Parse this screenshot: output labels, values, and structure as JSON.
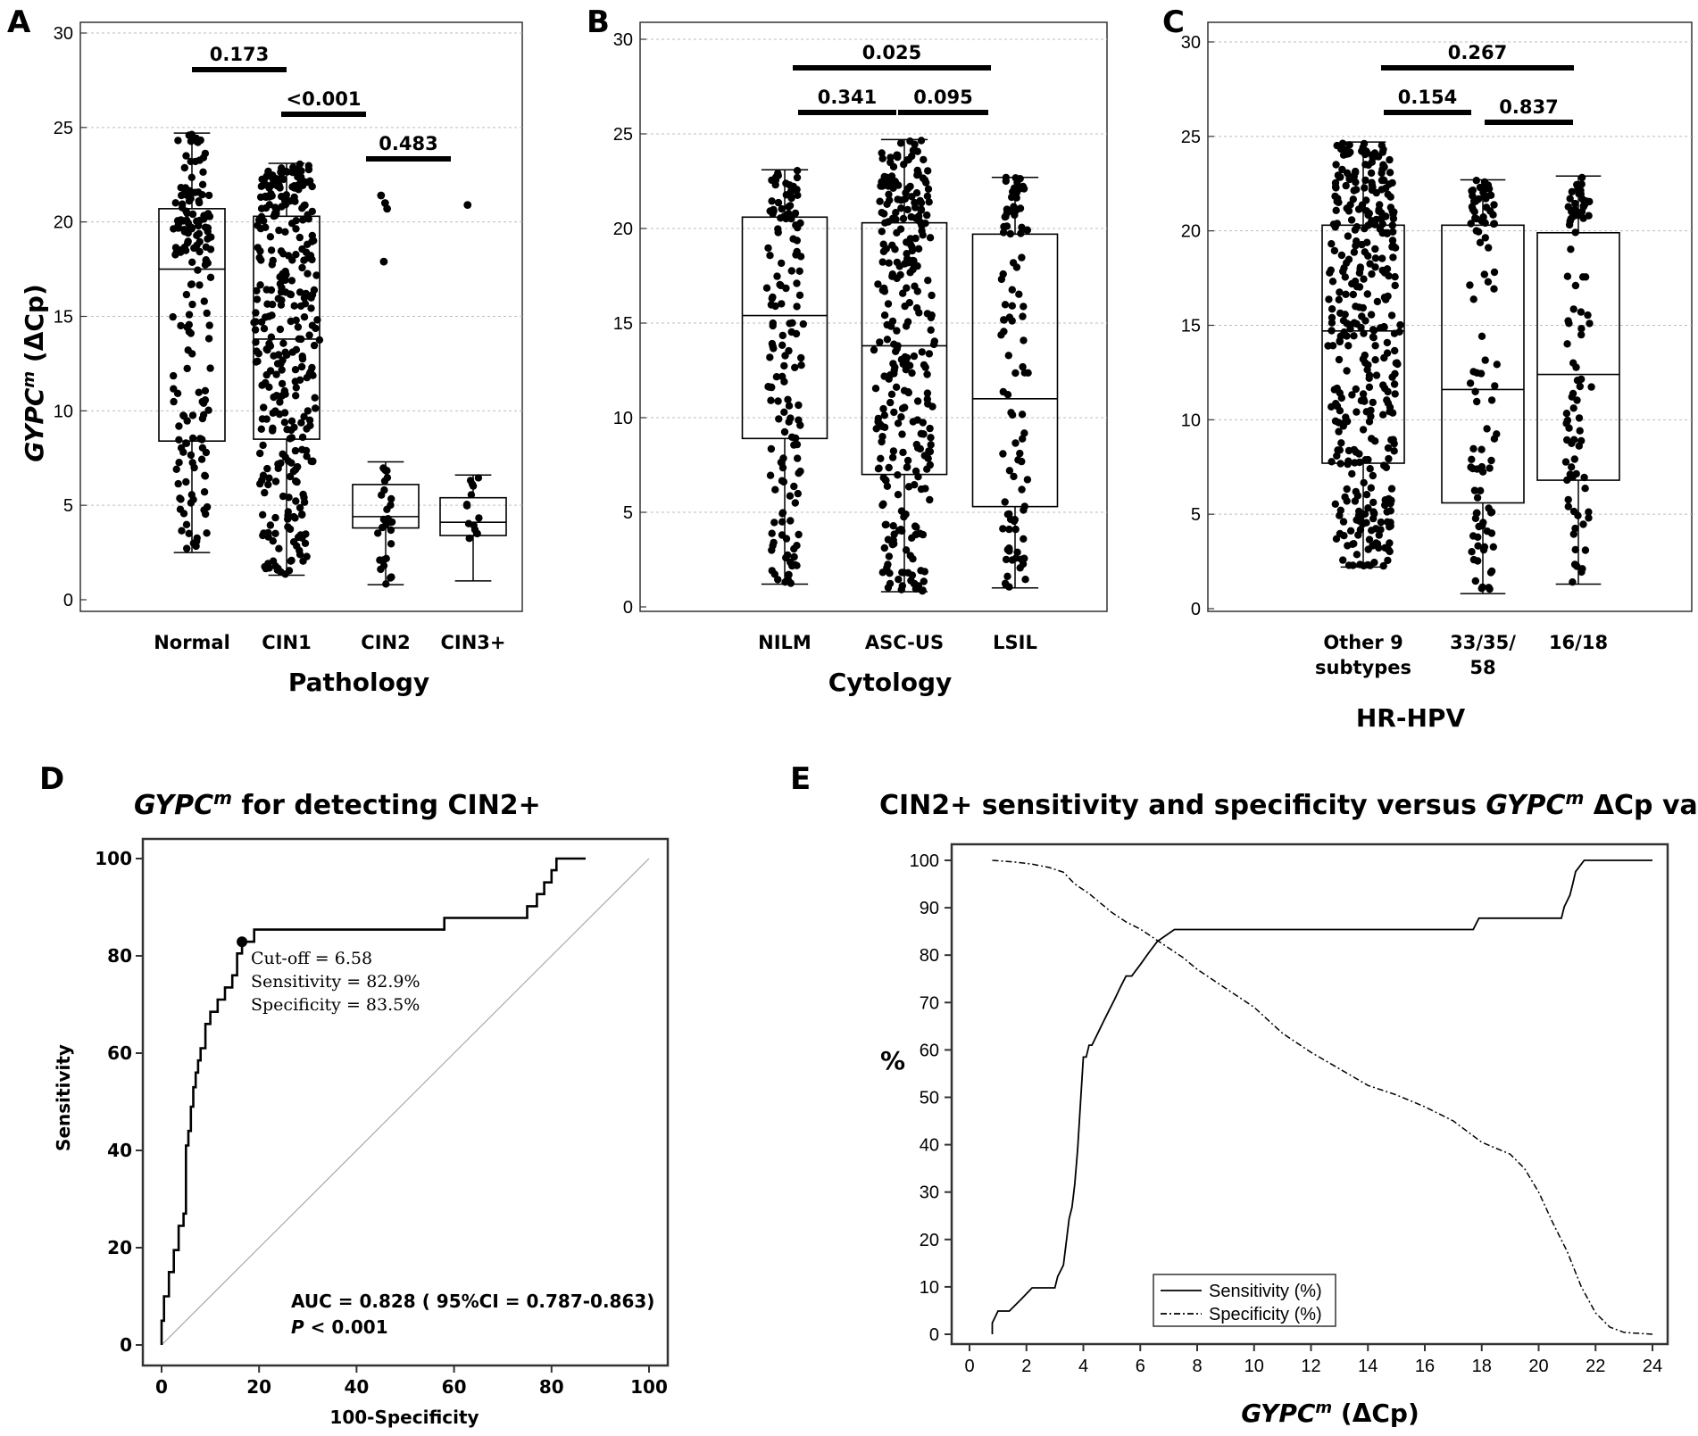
{
  "chart_data": [
    {
      "panel": "A",
      "type": "box-swarm",
      "ylabel_gene": "GYPC",
      "ylabel_sup": "m",
      "ylabel_rest": " (ΔCp)",
      "xlabel": "Pathology",
      "ylim": [
        0,
        30
      ],
      "yticks": [
        0,
        5,
        10,
        15,
        20,
        25,
        30
      ],
      "grid": true,
      "categories": [
        "Normal",
        "CIN1",
        "CIN2",
        "CIN3+"
      ],
      "boxes": [
        {
          "name": "Normal",
          "min": 2.5,
          "q1": 8.4,
          "median": 17.5,
          "q3": 20.7,
          "max": 24.7,
          "n": 170
        },
        {
          "name": "CIN1",
          "min": 1.3,
          "q1": 8.5,
          "median": 13.8,
          "q3": 20.3,
          "max": 23.1,
          "n": 330
        },
        {
          "name": "CIN2",
          "min": 0.8,
          "q1": 3.8,
          "median": 4.4,
          "q3": 6.1,
          "max": 7.3,
          "n": 28,
          "outliers": [
            17.9,
            20.7,
            21.0,
            21.4
          ]
        },
        {
          "name": "CIN3+",
          "min": 1.0,
          "q1": 3.4,
          "median": 4.1,
          "q3": 5.4,
          "max": 6.6,
          "n": 14,
          "outliers": [
            20.9
          ]
        }
      ],
      "comparisons": [
        {
          "groups": [
            "Normal",
            "CIN1"
          ],
          "p": "0.173"
        },
        {
          "groups": [
            "CIN1",
            "CIN2"
          ],
          "p": "<0.001"
        },
        {
          "groups": [
            "CIN2",
            "CIN3+"
          ],
          "p": "0.483"
        }
      ]
    },
    {
      "panel": "B",
      "type": "box-swarm",
      "xlabel": "Cytology",
      "ylim": [
        0,
        30
      ],
      "yticks": [
        0,
        5,
        10,
        15,
        20,
        25,
        30
      ],
      "grid": true,
      "categories": [
        "NILM",
        "ASC-US",
        "LSIL"
      ],
      "boxes": [
        {
          "name": "NILM",
          "min": 1.2,
          "q1": 8.9,
          "median": 15.4,
          "q3": 20.6,
          "max": 23.1,
          "n": 150
        },
        {
          "name": "ASC-US",
          "min": 0.8,
          "q1": 7.0,
          "median": 13.8,
          "q3": 20.3,
          "max": 24.7,
          "n": 300
        },
        {
          "name": "LSIL",
          "min": 1.0,
          "q1": 5.3,
          "median": 11.0,
          "q3": 19.7,
          "max": 22.7,
          "n": 100
        }
      ],
      "comparisons": [
        {
          "groups": [
            "NILM",
            "LSIL"
          ],
          "p": "0.025"
        },
        {
          "groups": [
            "NILM",
            "ASC-US"
          ],
          "p": "0.341"
        },
        {
          "groups": [
            "ASC-US",
            "LSIL"
          ],
          "p": "0.095"
        }
      ]
    },
    {
      "panel": "C",
      "type": "box-swarm",
      "xlabel": "HR-HPV",
      "ylim": [
        0,
        30
      ],
      "yticks": [
        0,
        5,
        10,
        15,
        20,
        25,
        30
      ],
      "grid": true,
      "categories": [
        [
          "Other 9",
          "subtypes"
        ],
        [
          "33/35/",
          "58"
        ],
        [
          "16/18"
        ]
      ],
      "boxes": [
        {
          "name": "Other 9 subtypes",
          "min": 2.2,
          "q1": 7.7,
          "median": 14.7,
          "q3": 20.3,
          "max": 24.7,
          "n": 380
        },
        {
          "name": "33/35/58",
          "min": 0.8,
          "q1": 5.6,
          "median": 11.6,
          "q3": 20.3,
          "max": 22.7,
          "n": 100
        },
        {
          "name": "16/18",
          "min": 1.3,
          "q1": 6.8,
          "median": 12.4,
          "q3": 19.9,
          "max": 22.9,
          "n": 90
        }
      ],
      "comparisons": [
        {
          "groups": [
            "Other 9 subtypes",
            "16/18"
          ],
          "p": "0.267"
        },
        {
          "groups": [
            "Other 9 subtypes",
            "33/35/58"
          ],
          "p": "0.154"
        },
        {
          "groups": [
            "33/35/58",
            "16/18"
          ],
          "p": "0.837"
        }
      ]
    },
    {
      "panel": "D",
      "type": "line",
      "title_gene": "GYPC",
      "title_sup": "m",
      "title_rest": " for detecting CIN2+",
      "xlabel": "100-Specificity",
      "ylabel": "Sensitivity",
      "xlim": [
        0,
        100
      ],
      "ylim": [
        0,
        100
      ],
      "xticks": [
        0,
        20,
        40,
        60,
        80,
        100
      ],
      "yticks": [
        0,
        20,
        40,
        60,
        80,
        100
      ],
      "roc_x": [
        0,
        0,
        0.5,
        0.5,
        1.5,
        1.5,
        2.5,
        2.5,
        3.5,
        3.5,
        4.5,
        4.5,
        5,
        5,
        5.5,
        5.5,
        6,
        6,
        6.5,
        6.5,
        7,
        7,
        7.5,
        7.5,
        8,
        8,
        9,
        9,
        10,
        10,
        11.5,
        11.5,
        13,
        13,
        14.5,
        14.5,
        15.5,
        15.5,
        16.5,
        16.5,
        19,
        19,
        58,
        58,
        75,
        75,
        77,
        77,
        78.5,
        78.5,
        80,
        80,
        81,
        81,
        87,
        87,
        100
      ],
      "roc_y": [
        0,
        5,
        5,
        10,
        10,
        15,
        15,
        19.5,
        19.5,
        24.5,
        24.5,
        27,
        27,
        41,
        41,
        44,
        44,
        49,
        49,
        53,
        53,
        56,
        56,
        58.5,
        58.5,
        61,
        61,
        66,
        66,
        68.5,
        68.5,
        71,
        71,
        73.5,
        73.5,
        76,
        76,
        80.5,
        80.5,
        82.9,
        82.9,
        85.4,
        85.4,
        87.8,
        87.8,
        90.2,
        90.2,
        92.7,
        92.7,
        95.1,
        95.1,
        97.6,
        97.6,
        100,
        100
      ],
      "diagonal": [
        [
          0,
          0
        ],
        [
          100,
          100
        ]
      ],
      "cutoff_point": {
        "x": 16.5,
        "y": 82.9
      },
      "annotations": [
        "Cut-off = 6.58",
        "Sensitivity = 82.9%",
        "Specificity = 83.5%"
      ],
      "auc_text": "AUC = 0.828 ( 95%CI = 0.787-0.863)",
      "p_label": "P",
      "p_text": " < 0.001"
    },
    {
      "panel": "E",
      "type": "line",
      "title_pre": "CIN2+ sensitivity and specificity versus ",
      "title_gene": "GYPC",
      "title_sup": "m",
      "title_rest": " ΔCp values",
      "ylabel": "%",
      "xlabel_gene": "GYPC",
      "xlabel_sup": "m",
      "xlabel_rest": " (ΔCp)",
      "xlim": [
        0,
        24
      ],
      "ylim": [
        0,
        100
      ],
      "xticks": [
        0,
        2,
        4,
        6,
        8,
        10,
        12,
        14,
        16,
        18,
        20,
        22,
        24
      ],
      "yticks": [
        0,
        10,
        20,
        30,
        40,
        50,
        60,
        70,
        80,
        90,
        100
      ],
      "legend": [
        "Sensitivity (%)",
        "Specificity (%)"
      ],
      "legend_position": "bottom-center",
      "series": [
        {
          "name": "Sensitivity (%)",
          "style": "solid",
          "x": [
            0.8,
            0.8,
            1.0,
            1.4,
            1.8,
            2.2,
            3.0,
            3.1,
            3.3,
            3.4,
            3.5,
            3.6,
            3.7,
            3.8,
            3.9,
            4.0,
            4.1,
            4.2,
            4.3,
            4.5,
            4.7,
            4.9,
            5.1,
            5.3,
            5.5,
            5.7,
            6.0,
            6.3,
            6.6,
            7.2,
            17.7,
            17.9,
            20.8,
            20.9,
            21.1,
            21.2,
            21.3,
            21.6,
            24.0
          ],
          "y": [
            0,
            2.4,
            4.9,
            4.9,
            7.3,
            9.8,
            9.8,
            12.2,
            14.6,
            19.5,
            24.4,
            26.8,
            31.7,
            39.0,
            48.8,
            58.5,
            58.5,
            61.0,
            61.0,
            63.4,
            65.9,
            68.3,
            70.7,
            73.2,
            75.6,
            75.6,
            78.0,
            80.5,
            82.9,
            85.4,
            85.4,
            87.8,
            87.8,
            90.2,
            92.7,
            95.1,
            97.6,
            100,
            100
          ]
        },
        {
          "name": "Specificity (%)",
          "style": "dash-dot",
          "x": [
            0.8,
            1.5,
            2.2,
            2.8,
            3.3,
            3.7,
            4.2,
            4.6,
            5.0,
            5.5,
            6.0,
            6.5,
            7.0,
            7.5,
            8.0,
            9.0,
            10.0,
            11.0,
            12.0,
            13.0,
            14.0,
            15.0,
            16.0,
            17.0,
            18.0,
            19.0,
            19.5,
            20.0,
            20.5,
            21.0,
            21.5,
            22.0,
            22.5,
            23.0,
            24.0
          ],
          "y": [
            100,
            99.7,
            99.2,
            98.5,
            97.5,
            95.0,
            93.0,
            91.0,
            89.0,
            87.0,
            85.5,
            83.5,
            81.5,
            79.5,
            77.0,
            73.0,
            69.0,
            63.5,
            59.5,
            56.0,
            52.5,
            50.5,
            48.0,
            45.0,
            40.5,
            38.0,
            35.0,
            30.0,
            23.5,
            17.5,
            10.0,
            4.5,
            1.5,
            0.4,
            0
          ]
        }
      ]
    }
  ],
  "panel_labels": [
    "A",
    "B",
    "C",
    "D",
    "E"
  ]
}
